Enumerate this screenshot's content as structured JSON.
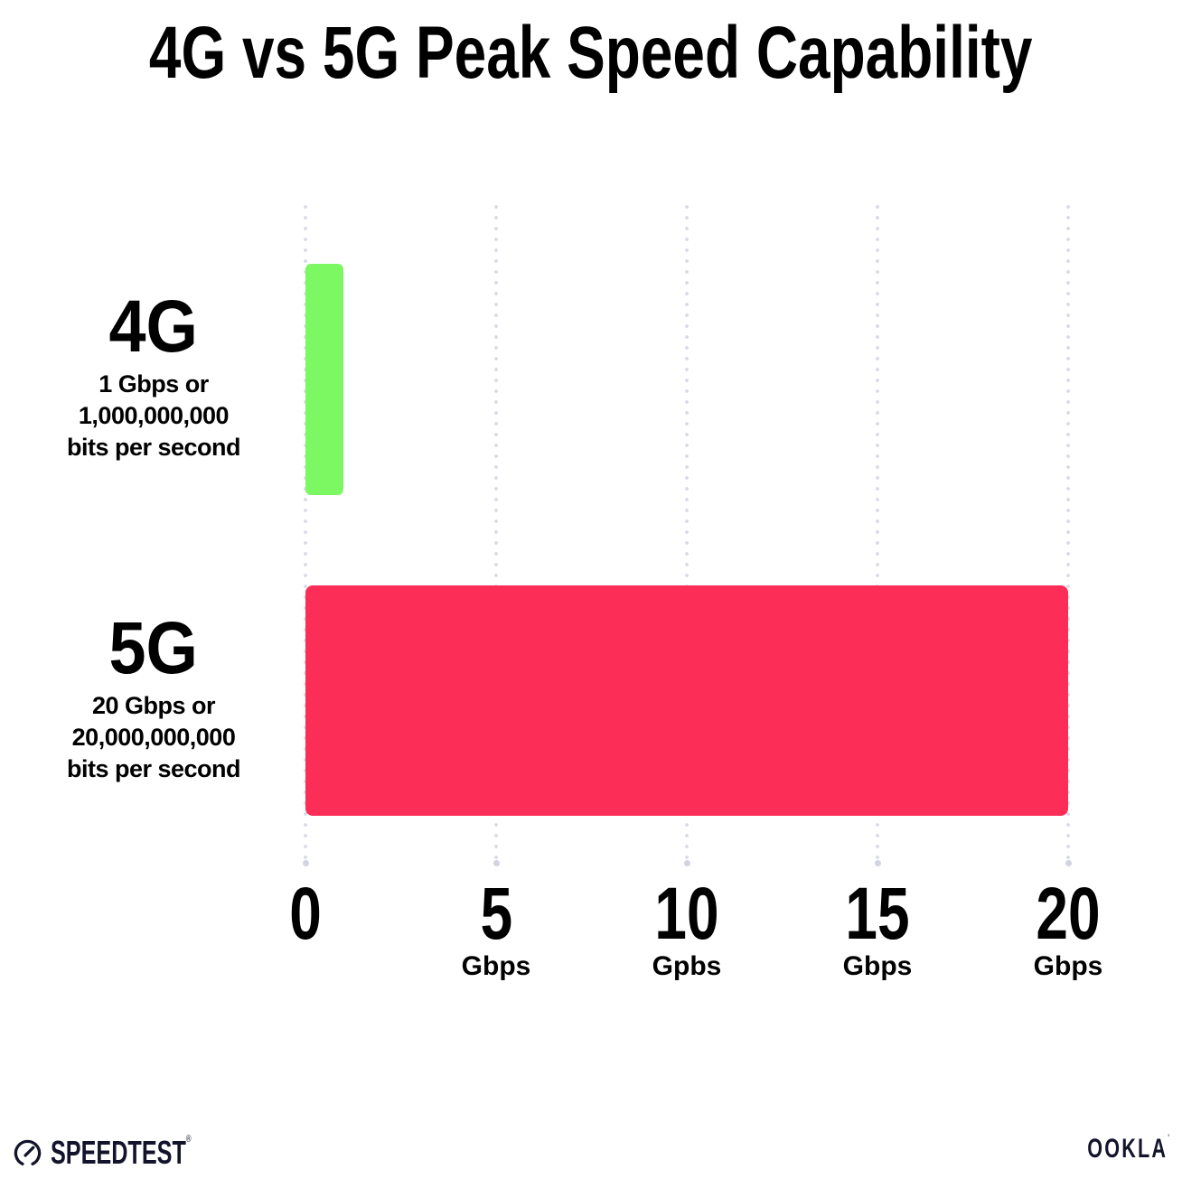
{
  "title": "4G vs 5G Peak Speed Capability",
  "colors": {
    "background": "#FFFFFF",
    "bar_4g": "#7CF962",
    "bar_5g": "#FC2D57",
    "grid_dot": "#D7D9E6",
    "text": "#000000",
    "footer_text": "#13142B"
  },
  "chart_data": {
    "type": "bar",
    "orientation": "horizontal",
    "title": "4G vs 5G Peak Speed Capability",
    "categories": [
      "4G",
      "5G"
    ],
    "values": [
      1,
      20
    ],
    "value_unit": "Gbps",
    "series": [
      {
        "name": "4G",
        "value": 1,
        "color": "#7CF962",
        "sublabel": [
          "1 Gbps or",
          "1,000,000,000",
          "bits per second"
        ]
      },
      {
        "name": "5G",
        "value": 20,
        "color": "#FC2D57",
        "sublabel": [
          "20 Gbps or",
          "20,000,000,000",
          "bits per second"
        ]
      }
    ],
    "xlim": [
      0,
      20
    ],
    "x_ticks": [
      {
        "value": 0,
        "label": "0",
        "unit": ""
      },
      {
        "value": 5,
        "label": "5",
        "unit": "Gbps"
      },
      {
        "value": 10,
        "label": "10",
        "unit": "Gpbs"
      },
      {
        "value": 15,
        "label": "15",
        "unit": "Gbps"
      },
      {
        "value": 20,
        "label": "20",
        "unit": "Gbps"
      }
    ],
    "grid": "vertical-dotted",
    "legend": "none"
  },
  "footer": {
    "speedtest_label": "SPEEDTEST",
    "speedtest_tm": "®",
    "ookla_label": "OOKLA",
    "ookla_tm": "’"
  }
}
